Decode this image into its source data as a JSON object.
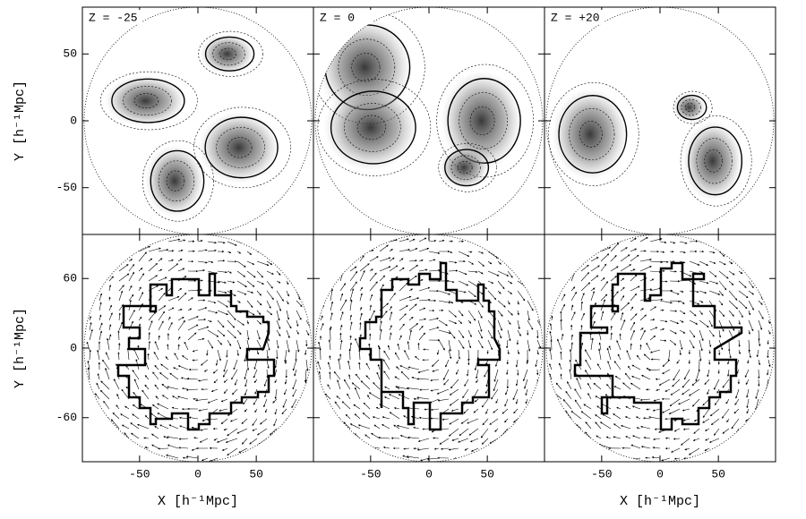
{
  "figure": {
    "panels": [
      {
        "label": "Z = -25"
      },
      {
        "label": "Z = 0"
      },
      {
        "label": "Z = +20"
      }
    ],
    "y_label": "Y [h⁻¹Mpc]",
    "x_label": "X [h⁻¹Mpc]",
    "xlim": [
      -99,
      99
    ],
    "xticks": [
      -50,
      0,
      50
    ],
    "top_ylim": [
      -85,
      85
    ],
    "top_yticks": [
      50,
      0,
      -50
    ],
    "bottom_ylim": [
      -98,
      98
    ],
    "bottom_yticks": [
      60,
      0,
      -60
    ]
  }
}
